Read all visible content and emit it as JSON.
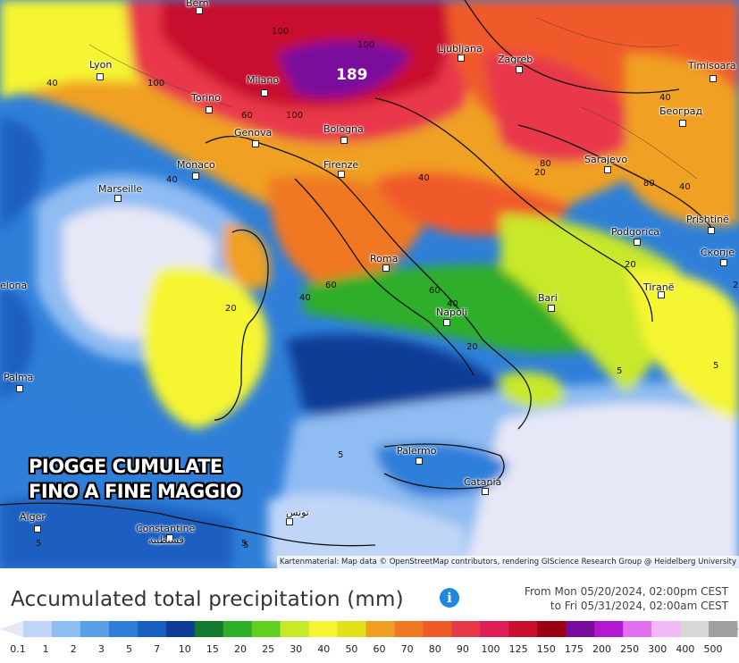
{
  "overlay": {
    "line1": "PIOGGE CUMULATE",
    "line2": "FINO A FINE MAGGIO"
  },
  "footer": {
    "title": "Accumulated total precipitation (mm)",
    "info_icon": "info-icon",
    "period_from": "From Mon 05/20/2024, 02:00pm CEST",
    "period_to": "to Fri 05/31/2024, 02:00am CEST"
  },
  "attribution": "Kartenmaterial: Map data © OpenStreetMap contributors, rendering GIScience Research Group @ Heidelberg University",
  "legend": {
    "values": [
      "0.1",
      "1",
      "2",
      "3",
      "5",
      "7",
      "10",
      "15",
      "20",
      "25",
      "30",
      "40",
      "50",
      "60",
      "70",
      "80",
      "90",
      "100",
      "125",
      "150",
      "175",
      "200",
      "250",
      "300",
      "400",
      "500"
    ],
    "colors": [
      "#e6e8f7",
      "#bfd6f7",
      "#8fbcf2",
      "#5a9ee8",
      "#2f7fd9",
      "#1a5fc0",
      "#0d3d96",
      "#137a2e",
      "#2fae2a",
      "#5fd020",
      "#c8e82a",
      "#f5f532",
      "#e2e21c",
      "#f0a020",
      "#f07820",
      "#f05a2a",
      "#e8394a",
      "#e01e5a",
      "#c8102e",
      "#9c0010",
      "#7a0a9c",
      "#b218d0",
      "#e070f0",
      "#f0b8f5",
      "#d7d7d7",
      "#a0a0a0"
    ]
  },
  "peak_value": "189",
  "cities": [
    {
      "name": "Bern"
    },
    {
      "name": "Lyon"
    },
    {
      "name": "Milano"
    },
    {
      "name": "Torino"
    },
    {
      "name": "Genova"
    },
    {
      "name": "Bologna"
    },
    {
      "name": "Monaco"
    },
    {
      "name": "Marseille"
    },
    {
      "name": "Firenze"
    },
    {
      "name": "Ljubljana"
    },
    {
      "name": "Zagreb"
    },
    {
      "name": "Timisoara"
    },
    {
      "name": "Београд"
    },
    {
      "name": "Sarajevo"
    },
    {
      "name": "Podgorica"
    },
    {
      "name": "Prishtinë"
    },
    {
      "name": "Скопје"
    },
    {
      "name": "Tiranë"
    },
    {
      "name": "Roma"
    },
    {
      "name": "Napoli"
    },
    {
      "name": "Bari"
    },
    {
      "name": "Palma"
    },
    {
      "name": "Palermo"
    },
    {
      "name": "Catania"
    },
    {
      "name": "Alger"
    },
    {
      "name": "Constantine"
    },
    {
      "name": "قسنطينة"
    },
    {
      "name": "تونس"
    },
    {
      "name": "elona"
    }
  ],
  "isolines": [
    "100",
    "40",
    "100",
    "100",
    "60",
    "100",
    "40",
    "40",
    "60",
    "40",
    "40",
    "60",
    "20",
    "20",
    "40",
    "20",
    "20",
    "5",
    "5",
    "5",
    "5",
    "20",
    "5",
    "40",
    "80",
    "80",
    "5"
  ]
}
